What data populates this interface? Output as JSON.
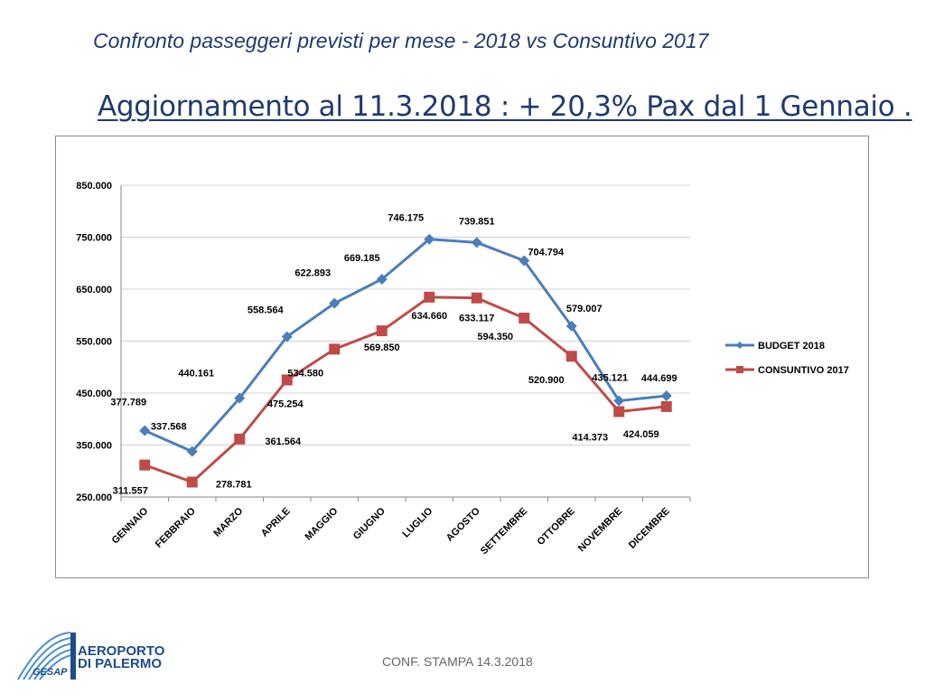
{
  "slide": {
    "subtitle": "Confronto passeggeri previsti per mese - 2018 vs Consuntivo 2017",
    "headline": "Aggiornamento al 11.3.2018 : + 20,3% Pax dal 1 Gennaio .",
    "footer": "CONF. STAMPA 14.3.2018",
    "logo_line1": "AEROPORTO",
    "logo_line2": "DI PALERMO",
    "logo_sub": "GESAP"
  },
  "colors": {
    "budget": "#4a7ebb",
    "consuntivo": "#be4b48",
    "title": "#1f3a6e",
    "grid": "#d0d0d0"
  },
  "chart_data": {
    "type": "line",
    "categories": [
      "GENNAIO",
      "FEBBRAIO",
      "MARZO",
      "APRILE",
      "MAGGIO",
      "GIUGNO",
      "LUGLIO",
      "AGOSTO",
      "SETTEMBRE",
      "OTTOBRE",
      "NOVEMBRE",
      "DICEMBRE"
    ],
    "series": [
      {
        "name": "BUDGET 2018",
        "values": [
          377789,
          337568,
          440161,
          558564,
          622893,
          669185,
          746175,
          739851,
          704794,
          579007,
          435121,
          444699
        ],
        "labels": [
          "377.789",
          "337.568",
          "440.161",
          "558.564",
          "622.893",
          "669.185",
          "746.175",
          "739.851",
          "704.794",
          "579.007",
          "435.121",
          "444.699"
        ]
      },
      {
        "name": "CONSUNTIVO 2017",
        "values": [
          311557,
          278781,
          361564,
          475254,
          534580,
          569850,
          634660,
          633117,
          594350,
          520900,
          414373,
          424059
        ],
        "labels": [
          "311.557",
          "278.781",
          "361.564",
          "475.254",
          "534.580",
          "569.850",
          "634.660",
          "633.117",
          "594.350",
          "520.900",
          "414.373",
          "424.059"
        ]
      }
    ],
    "yticks": [
      250000,
      350000,
      450000,
      550000,
      650000,
      750000,
      850000
    ],
    "ytick_labels": [
      "250.000",
      "350.000",
      "450.000",
      "550.000",
      "650.000",
      "750.000",
      "850.000"
    ],
    "ylim": [
      250000,
      850000
    ],
    "legend": "right",
    "grid": true
  }
}
